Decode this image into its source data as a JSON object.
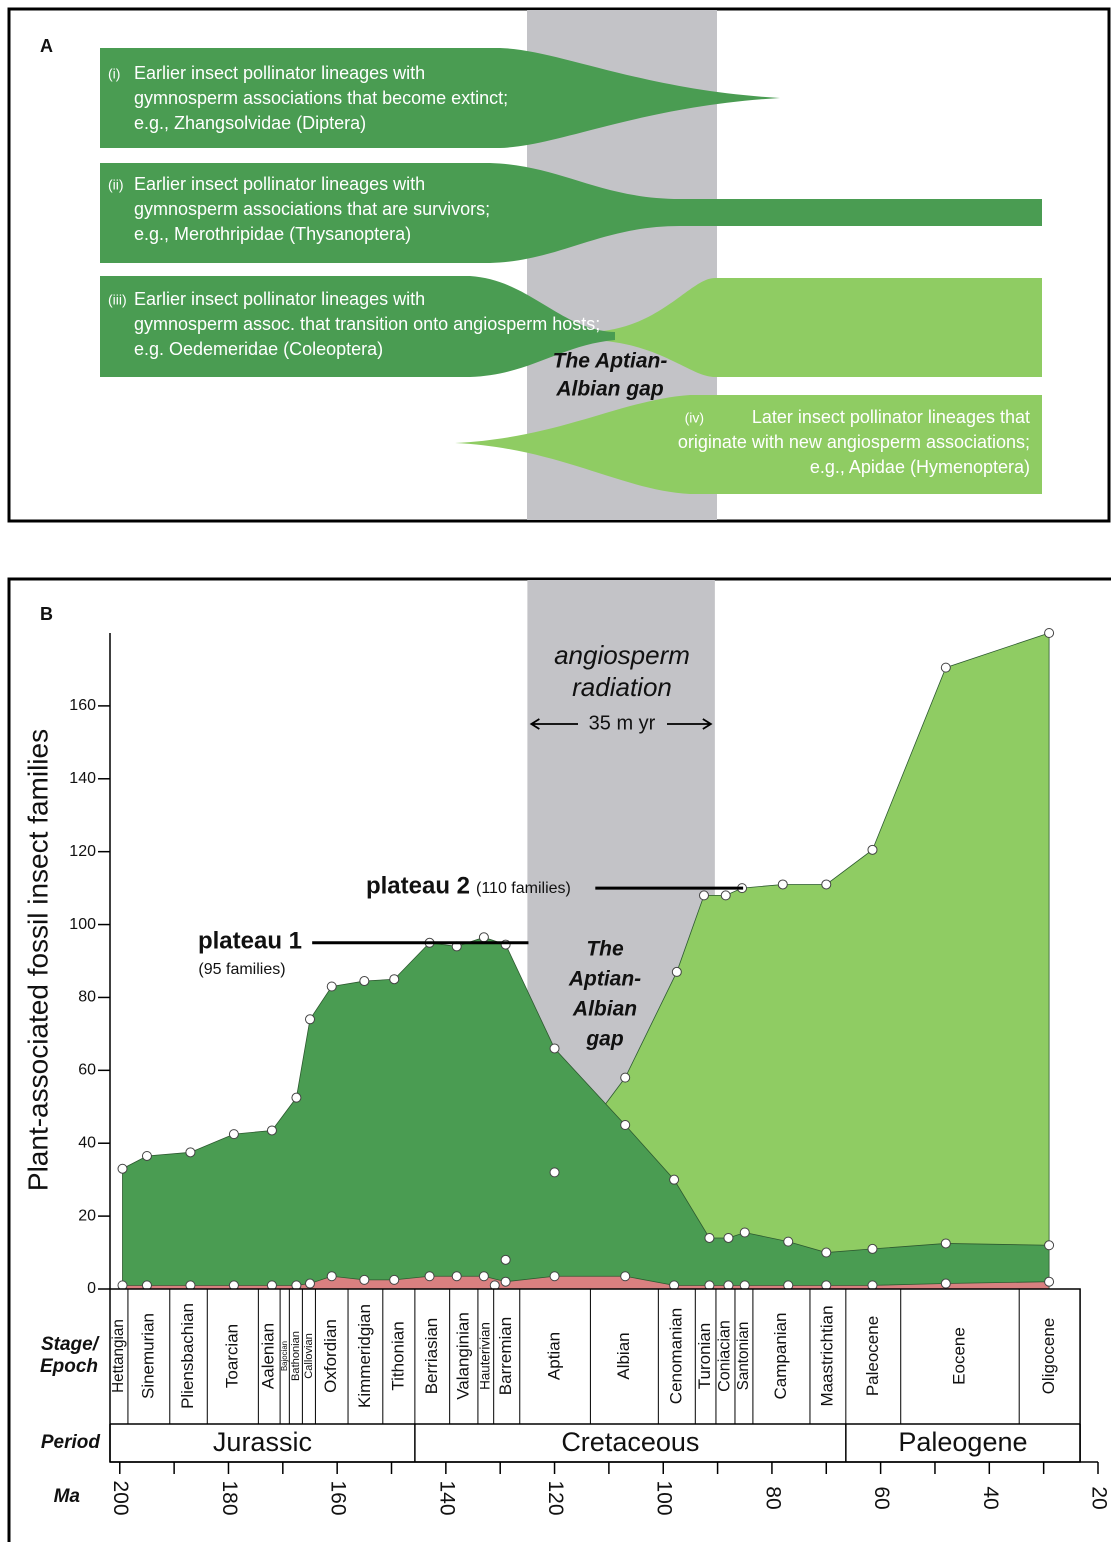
{
  "panel_a": {
    "label": "A",
    "lineages": [
      {
        "numeral": "(i)",
        "lines": [
          "Earlier insect pollinator lineages with",
          "gymnosperm associations that become extinct;",
          "e.g., Zhangsolvidae (Diptera)"
        ]
      },
      {
        "numeral": "(ii)",
        "lines": [
          "Earlier insect pollinator lineages with",
          "gymnosperm associations that are survivors;",
          "e.g., Merothripidae (Thysanoptera)"
        ]
      },
      {
        "numeral": "(iii)",
        "lines": [
          "Earlier insect pollinator lineages with",
          "gymnosperm assoc. that transition onto angiosperm hosts;",
          "e.g. Oedemeridae (Coleoptera)"
        ]
      },
      {
        "numeral": "(iv)",
        "lines": [
          "Later insect pollinator lineages that",
          "originate with new angiosperm associations;",
          "e.g., Apidae (Hymenoptera)"
        ]
      }
    ],
    "gap_label": [
      "The Aptian-",
      "Albian gap"
    ]
  },
  "chart_data": {
    "type": "area",
    "panel_label": "B",
    "y_label": "Plant-associated fossil insect families",
    "x_label": "Ma",
    "xlim": [
      201.8,
      20
    ],
    "xticks": [
      200,
      180,
      160,
      140,
      120,
      100,
      80,
      60,
      40,
      20
    ],
    "xminorticks": [
      190,
      170,
      150,
      130,
      110,
      90,
      70,
      50,
      30
    ],
    "ylim": [
      0,
      180
    ],
    "yticks": [
      0,
      20,
      40,
      60,
      80,
      100,
      120,
      140,
      160
    ],
    "series": [
      {
        "color": "#8fcc63",
        "x": [
          131,
          129,
          120,
          107,
          97.5,
          92.5,
          88.5,
          85.5,
          78,
          70,
          61.5,
          48,
          29
        ],
        "values": [
          1,
          8,
          32,
          58,
          87,
          108,
          108,
          110,
          111,
          111,
          120.5,
          170.5,
          180
        ]
      },
      {
        "color": "#4a9c52",
        "x": [
          199.5,
          195,
          187,
          179,
          172,
          167.5,
          165,
          161,
          155,
          149.5,
          143,
          138,
          133,
          129,
          120,
          107,
          98,
          91.5,
          88,
          85,
          77,
          70,
          61.5,
          48,
          29
        ],
        "values": [
          33,
          36.5,
          37.5,
          42.5,
          43.5,
          52.5,
          74,
          83,
          84.5,
          85,
          95,
          94,
          96.5,
          94.5,
          66,
          45,
          30,
          14,
          14,
          15.5,
          13,
          10,
          11,
          12.5,
          12
        ]
      },
      {
        "color": "#d98080",
        "x": [
          199.5,
          195,
          187,
          179,
          172,
          167.5,
          165,
          161,
          155,
          149.5,
          143,
          138,
          133,
          129,
          120,
          107,
          98,
          91.5,
          88,
          85,
          77,
          70,
          61.5,
          48,
          29
        ],
        "values": [
          1,
          1,
          1,
          1,
          1,
          1,
          1.5,
          3.5,
          2.5,
          2.5,
          3.5,
          3.5,
          3.5,
          2,
          3.5,
          3.5,
          1,
          1,
          1,
          1,
          1,
          1,
          1,
          1.5,
          2
        ]
      }
    ],
    "gap_range": [
      125,
      90.5
    ],
    "gap_color": "#c3c3c7",
    "gap_label": [
      "The",
      "Aptian-",
      "Albian",
      "gap"
    ],
    "radiation_label": [
      "angiosperm",
      "radiation"
    ],
    "radiation_span_label": "35 m yr",
    "plateaus": [
      {
        "label": "plateau 1",
        "note": "(95 families)",
        "value": 95,
        "x": [
          164.6,
          124.8
        ]
      },
      {
        "label": "plateau 2",
        "note": "(110 families)",
        "value": 110,
        "x": [
          112.5,
          85.3
        ]
      }
    ],
    "stage_row_label": [
      "Stage/",
      "Epoch"
    ],
    "stages": [
      "Hettangian",
      "Sinemurian",
      "Pliensbachian",
      "Toarcian",
      "Aalenian",
      "Bajocian",
      "Bathonian",
      "Callovian",
      "Oxfordian",
      "Kimmeridgian",
      "Tithonian",
      "Berriasian",
      "Valanginian",
      "Hauterivian",
      "Barremian",
      "Aptian",
      "Albian",
      "Cenomanian",
      "Turonian",
      "Coniacian",
      "Santonian",
      "Campanian",
      "Maastrichtian",
      "Paleocene",
      "Eocene",
      "Oligocene"
    ],
    "stage_bounds": [
      201.8,
      198.5,
      190.8,
      183.9,
      174.5,
      170.5,
      168.8,
      166.4,
      164,
      158,
      151.6,
      145.7,
      139.3,
      134.1,
      131.2,
      126.4,
      113.4,
      100.9,
      94.1,
      90.3,
      86.8,
      83.5,
      73,
      66.4,
      56.3,
      34.5,
      23.3
    ],
    "period_row_label": "Period",
    "periods": [
      "Jurassic",
      "Cretaceous",
      "Paleogene"
    ],
    "period_bounds": [
      201.8,
      145.7,
      66.4,
      23.3
    ]
  }
}
